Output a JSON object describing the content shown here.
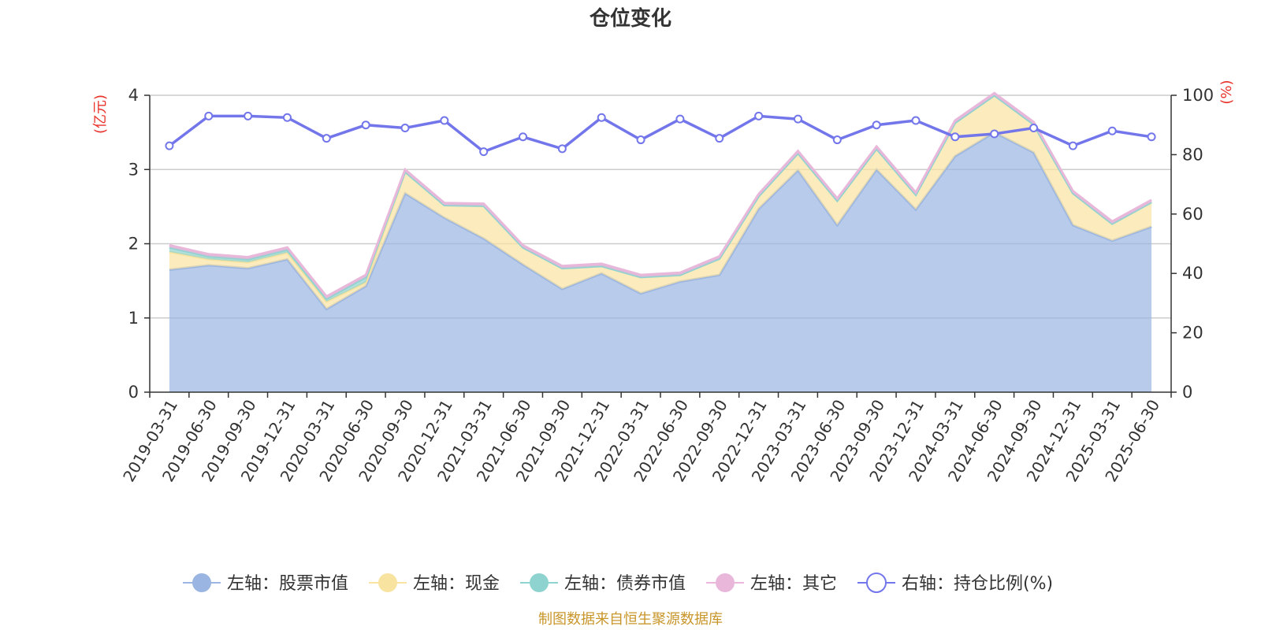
{
  "title": "仓位变化",
  "source": "制图数据来自恒生聚源数据库",
  "chart_data": {
    "type": "area",
    "stacked": true,
    "categories": [
      "2019-03-31",
      "2019-06-30",
      "2019-09-30",
      "2019-12-31",
      "2020-03-31",
      "2020-06-30",
      "2020-09-30",
      "2020-12-31",
      "2021-03-31",
      "2021-06-30",
      "2021-09-30",
      "2021-12-31",
      "2022-03-31",
      "2022-06-30",
      "2022-09-30",
      "2022-12-31",
      "2023-03-31",
      "2023-06-30",
      "2023-09-30",
      "2023-12-31",
      "2024-03-31",
      "2024-06-30",
      "2024-09-30",
      "2024-12-31",
      "2025-03-31",
      "2025-06-30"
    ],
    "left_axis": {
      "unit": "(亿元)",
      "ylim": [
        0,
        4
      ],
      "ticks": [
        "0",
        "1",
        "2",
        "3",
        "4"
      ]
    },
    "right_axis": {
      "unit": "(%)",
      "ylim": [
        0,
        100
      ],
      "ticks": [
        "0",
        "20",
        "40",
        "60",
        "80",
        "100"
      ]
    },
    "series": [
      {
        "name": "左轴：股票市值",
        "axis": "left",
        "color": "#9ab5e1",
        "values": [
          1.65,
          1.71,
          1.67,
          1.79,
          1.12,
          1.43,
          2.68,
          2.35,
          2.07,
          1.72,
          1.39,
          1.6,
          1.33,
          1.49,
          1.58,
          2.47,
          2.99,
          2.25,
          3.0,
          2.46,
          3.18,
          3.5,
          3.23,
          2.25,
          2.04,
          2.23
        ]
      },
      {
        "name": "左轴：现金",
        "axis": "left",
        "color": "#f9e3a1",
        "values": [
          0.24,
          0.08,
          0.08,
          0.09,
          0.1,
          0.05,
          0.29,
          0.17,
          0.44,
          0.23,
          0.28,
          0.1,
          0.22,
          0.09,
          0.22,
          0.17,
          0.23,
          0.33,
          0.28,
          0.2,
          0.45,
          0.5,
          0.38,
          0.43,
          0.23,
          0.33
        ]
      },
      {
        "name": "左轴：债券市值",
        "axis": "left",
        "color": "#8fd3d0",
        "values": [
          0.06,
          0.04,
          0.04,
          0.04,
          0.04,
          0.07,
          0.0,
          0.0,
          0.0,
          0.0,
          0.0,
          0.0,
          0.0,
          0.0,
          0.0,
          0.0,
          0.0,
          0.0,
          0.0,
          0.0,
          0.0,
          0.0,
          0.0,
          0.0,
          0.0,
          0.0
        ]
      },
      {
        "name": "左轴：其它",
        "axis": "left",
        "color": "#e8b7da",
        "values": [
          0.03,
          0.03,
          0.03,
          0.03,
          0.03,
          0.03,
          0.03,
          0.03,
          0.03,
          0.03,
          0.03,
          0.03,
          0.03,
          0.03,
          0.03,
          0.03,
          0.03,
          0.03,
          0.03,
          0.03,
          0.03,
          0.03,
          0.03,
          0.03,
          0.03,
          0.03
        ]
      },
      {
        "name": "右轴：持仓比例(%)",
        "axis": "right",
        "type": "line",
        "color": "#7376ea",
        "values": [
          83,
          93,
          93,
          92.5,
          85.5,
          90,
          89,
          91.5,
          81,
          86,
          82,
          92.5,
          85,
          92,
          85.5,
          93,
          92,
          85,
          90,
          91.5,
          86,
          87,
          89,
          83,
          88,
          86
        ]
      }
    ],
    "grid": true,
    "legend_position": "bottom"
  }
}
